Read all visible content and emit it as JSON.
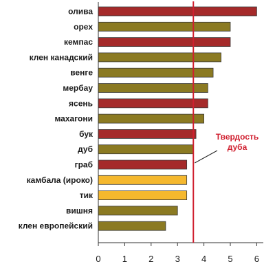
{
  "chart_data": {
    "type": "bar",
    "orientation": "horizontal",
    "categories": [
      "олива",
      "орех",
      "кемпас",
      "клен канадский",
      "венге",
      "мербау",
      "ясень",
      "махагони",
      "бук",
      "дуб",
      "граб",
      "камбала (ироко)",
      "тик",
      "вишня",
      "клен европейский"
    ],
    "values": [
      6.0,
      5.0,
      5.0,
      4.65,
      4.35,
      4.15,
      4.15,
      4.0,
      3.7,
      3.6,
      3.35,
      3.35,
      3.35,
      3.0,
      2.55
    ],
    "bar_colors": [
      "#a52a2a",
      "#8b7a22",
      "#a52a2a",
      "#8b7a22",
      "#8b7a22",
      "#8b7a22",
      "#a52a2a",
      "#8b7a22",
      "#a52a2a",
      "#8b7a22",
      "#a52a2a",
      "#f5b82e",
      "#f5b82e",
      "#8b7a22",
      "#8b7a22"
    ],
    "x_ticks": [
      0,
      1,
      2,
      3,
      4,
      5,
      6
    ],
    "xlim": [
      0,
      6.25
    ],
    "reference_line": {
      "value": 3.6,
      "label": "Твердость дуба",
      "color": "#d01f2f"
    },
    "grid": false,
    "title": "",
    "xlabel": "",
    "ylabel": ""
  }
}
